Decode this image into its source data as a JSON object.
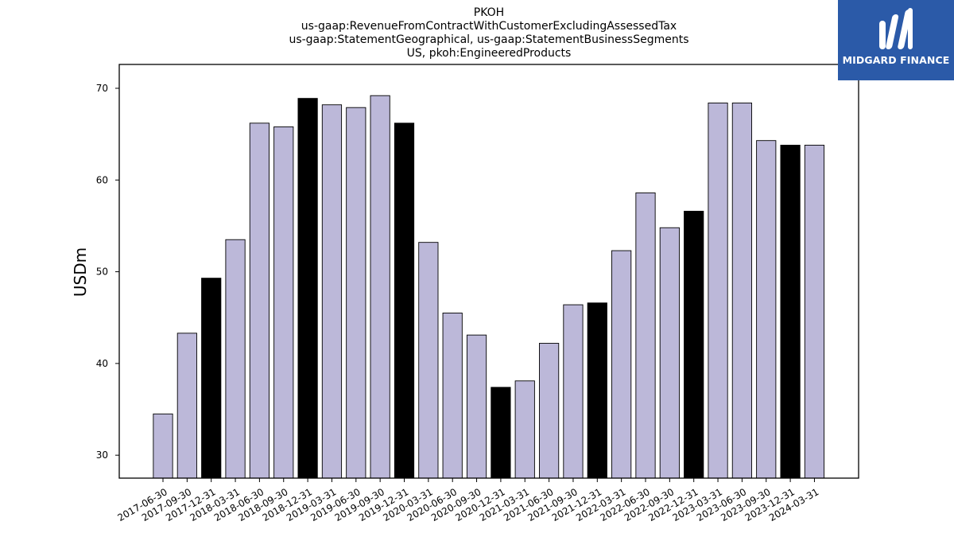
{
  "brand": {
    "name": "MIDGARD FINANCE",
    "bg_color": "#2b5aa8",
    "icon": "midgard-m-logo-icon"
  },
  "chart_data": {
    "type": "bar",
    "title_lines": [
      "PKOH",
      "us-gaap:RevenueFromContractWithCustomerExcludingAssessedTax",
      "us-gaap:StatementGeographical, us-gaap:StatementBusinessSegments",
      "US, pkoh:EngineeredProducts"
    ],
    "xlabel": "",
    "ylabel": "USDm",
    "ylim": [
      27.5,
      72.6
    ],
    "yticks": [
      30,
      40,
      50,
      60,
      70
    ],
    "grid": false,
    "bar_color": "#bcb8d9",
    "highlight_color": "#000000",
    "categories": [
      "2017-06-30",
      "2017-09-30",
      "2017-12-31",
      "2018-03-31",
      "2018-06-30",
      "2018-09-30",
      "2018-12-31",
      "2019-03-31",
      "2019-06-30",
      "2019-09-30",
      "2019-12-31",
      "2020-03-31",
      "2020-06-30",
      "2020-09-30",
      "2020-12-31",
      "2021-03-31",
      "2021-06-30",
      "2021-09-30",
      "2021-12-31",
      "2022-03-31",
      "2022-06-30",
      "2022-09-30",
      "2022-12-31",
      "2023-03-31",
      "2023-06-30",
      "2023-09-30",
      "2023-12-31",
      "2024-03-31"
    ],
    "values": [
      34.5,
      43.3,
      49.3,
      53.5,
      66.2,
      65.8,
      68.9,
      68.2,
      67.9,
      69.2,
      66.2,
      53.2,
      45.5,
      43.1,
      37.4,
      38.1,
      42.2,
      46.4,
      46.6,
      52.3,
      58.6,
      54.8,
      56.6,
      68.4,
      68.4,
      64.3,
      63.8,
      63.8
    ],
    "highlighted": [
      false,
      false,
      true,
      false,
      false,
      false,
      true,
      false,
      false,
      false,
      true,
      false,
      false,
      false,
      true,
      false,
      false,
      false,
      true,
      false,
      false,
      false,
      true,
      false,
      false,
      false,
      true,
      false
    ]
  }
}
